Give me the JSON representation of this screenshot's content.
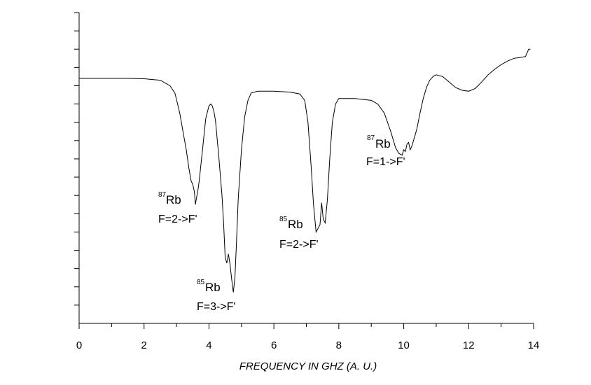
{
  "chart_data": {
    "type": "line",
    "title": "",
    "xlabel": "FREQUENCY IN GHZ (A. U.)",
    "ylabel": "",
    "xlim": [
      0,
      14
    ],
    "ylim": [
      0,
      17
    ],
    "x_ticks": [
      "0",
      "2",
      "4",
      "6",
      "8",
      "10",
      "12",
      "14"
    ],
    "y_tick_labels_shown": false,
    "grid": false,
    "series": [
      {
        "x": [
          0.0,
          0.5,
          1.0,
          1.5,
          2.0,
          2.5,
          2.8,
          2.95,
          3.1,
          3.2,
          3.3,
          3.38,
          3.45,
          3.5,
          3.55,
          3.58,
          3.62,
          3.66,
          3.7,
          3.8,
          3.9,
          4.0,
          4.06,
          4.1,
          4.15,
          4.2,
          4.3,
          4.4,
          4.45,
          4.5,
          4.55,
          4.6,
          4.65,
          4.7,
          4.75,
          4.8,
          4.85,
          4.9,
          5.0,
          5.1,
          5.2,
          5.3,
          5.5,
          6.0,
          6.5,
          6.8,
          6.95,
          7.05,
          7.15,
          7.22,
          7.3,
          7.36,
          7.42,
          7.47,
          7.52,
          7.58,
          7.65,
          7.72,
          7.8,
          7.9,
          8.0,
          8.5,
          9.0,
          9.2,
          9.4,
          9.6,
          9.75,
          9.85,
          9.95,
          10.0,
          10.05,
          10.1,
          10.15,
          10.2,
          10.25,
          10.3,
          10.4,
          10.5,
          10.6,
          10.7,
          10.8,
          10.9,
          11.0,
          11.2,
          11.4,
          11.6,
          11.8,
          12.0,
          12.2,
          12.4,
          12.6,
          12.8,
          13.0,
          13.2,
          13.4,
          13.6,
          13.75,
          13.8,
          13.85,
          13.9
        ],
        "y": [
          13.4,
          13.4,
          13.4,
          13.4,
          13.38,
          13.3,
          13.0,
          12.6,
          11.5,
          10.5,
          9.5,
          8.5,
          7.8,
          7.6,
          7.2,
          6.5,
          6.9,
          7.3,
          7.8,
          9.5,
          11.2,
          11.9,
          12.0,
          11.9,
          11.6,
          11.1,
          9.2,
          7.0,
          5.5,
          3.6,
          3.3,
          3.8,
          3.2,
          2.4,
          1.7,
          2.5,
          4.5,
          6.8,
          9.5,
          11.3,
          12.2,
          12.6,
          12.7,
          12.7,
          12.65,
          12.55,
          12.2,
          11.0,
          8.5,
          6.5,
          5.0,
          5.2,
          5.4,
          6.6,
          5.7,
          5.5,
          6.8,
          9.0,
          11.0,
          12.0,
          12.3,
          12.3,
          12.2,
          12.0,
          11.5,
          10.5,
          9.6,
          9.3,
          9.2,
          9.5,
          9.4,
          9.8,
          9.9,
          9.5,
          9.7,
          10.0,
          10.6,
          11.5,
          12.3,
          12.9,
          13.3,
          13.5,
          13.6,
          13.5,
          13.2,
          12.9,
          12.75,
          12.7,
          12.85,
          13.2,
          13.6,
          13.9,
          14.15,
          14.35,
          14.5,
          14.55,
          14.6,
          14.8,
          15.0,
          15.0
        ]
      }
    ],
    "annotations": [
      {
        "iso": "87",
        "el": "Rb",
        "trans": "F=2->F'"
      },
      {
        "iso": "85",
        "el": "Rb",
        "trans": "F=3->F'"
      },
      {
        "iso": "85",
        "el": "Rb",
        "trans": "F=2->F'"
      },
      {
        "iso": "87",
        "el": "Rb",
        "trans": "F=1->F'"
      }
    ]
  }
}
